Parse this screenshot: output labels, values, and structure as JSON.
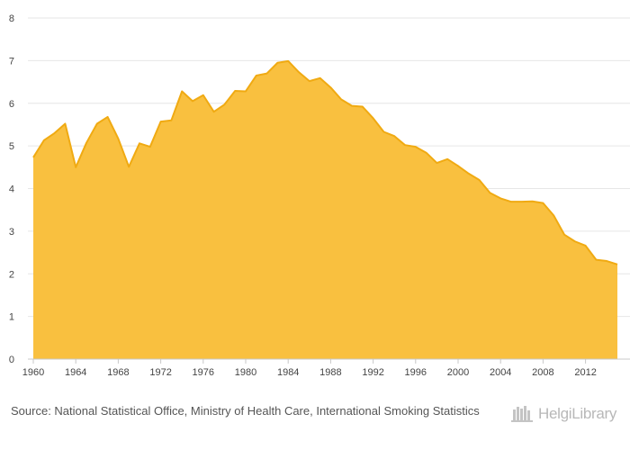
{
  "chart_data": {
    "type": "area",
    "title": "",
    "xlabel": "",
    "ylabel": "",
    "ylim": [
      0,
      8
    ],
    "y_ticks": [
      "0",
      "1",
      "2",
      "3",
      "4",
      "5",
      "6",
      "7",
      "8"
    ],
    "x_tick_labels": [
      "1960",
      "1964",
      "1968",
      "1972",
      "1976",
      "1980",
      "1984",
      "1988",
      "1992",
      "1996",
      "2000",
      "2004",
      "2008",
      "2012"
    ],
    "x_tick_years": [
      1960,
      1964,
      1968,
      1972,
      1976,
      1980,
      1984,
      1988,
      1992,
      1996,
      2000,
      2004,
      2008,
      2012
    ],
    "grid": true,
    "legend": "none",
    "fill_color": "#f9c03f",
    "line_color": "#f0aa12",
    "x": [
      1960,
      1961,
      1962,
      1963,
      1964,
      1965,
      1966,
      1967,
      1968,
      1969,
      1970,
      1971,
      1972,
      1973,
      1974,
      1975,
      1976,
      1977,
      1978,
      1979,
      1980,
      1981,
      1982,
      1983,
      1984,
      1985,
      1986,
      1987,
      1988,
      1989,
      1990,
      1991,
      1992,
      1993,
      1994,
      1995,
      1996,
      1997,
      1998,
      1999,
      2000,
      2001,
      2002,
      2003,
      2004,
      2005,
      2006,
      2007,
      2008,
      2009,
      2010,
      2011,
      2012,
      2013,
      2014,
      2015
    ],
    "values": [
      4.73,
      5.13,
      5.3,
      5.52,
      4.5,
      5.07,
      5.52,
      5.68,
      5.17,
      4.51,
      5.06,
      4.98,
      5.57,
      5.6,
      6.28,
      6.05,
      6.19,
      5.8,
      5.97,
      6.29,
      6.28,
      6.65,
      6.7,
      6.95,
      6.99,
      6.73,
      6.52,
      6.59,
      6.37,
      6.09,
      5.94,
      5.92,
      5.65,
      5.33,
      5.23,
      5.02,
      4.98,
      4.84,
      4.6,
      4.69,
      4.53,
      4.35,
      4.2,
      3.9,
      3.77,
      3.69,
      3.69,
      3.7,
      3.66,
      3.37,
      2.92,
      2.76,
      2.66,
      2.33,
      2.3,
      2.22
    ]
  },
  "source": {
    "text": "Source: National Statistical Office, Ministry of Health Care, International Smoking Statistics"
  },
  "logo": {
    "text": "HelgiLibrary",
    "icon": "helgi-library-books-icon"
  }
}
